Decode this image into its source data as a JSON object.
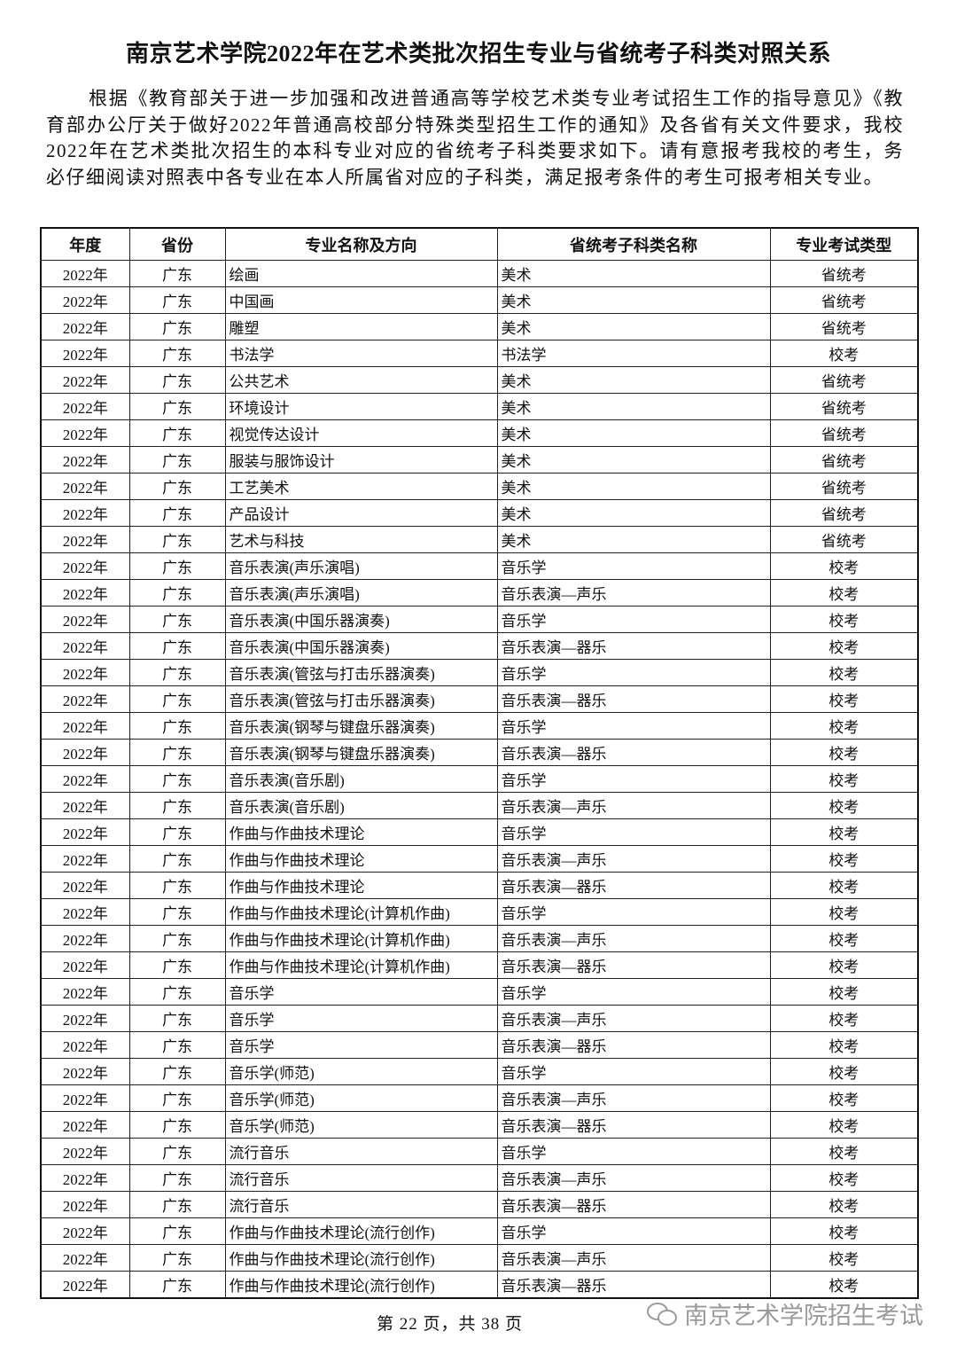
{
  "title": "南京艺术学院2022年在艺术类批次招生专业与省统考子科类对照关系",
  "intro": "根据《教育部关于进一步加强和改进普通高等学校艺术类专业考试招生工作的指导意见》《教育部办公厅关于做好2022年普通高校部分特殊类型招生工作的通知》及各省有关文件要求，我校2022年在艺术类批次招生的本科专业对应的省统考子科类要求如下。请有意报考我校的考生，务必仔细阅读对照表中各专业在本人所属省对应的子科类，满足报考条件的考生可报考相关专业。",
  "table": {
    "headers": [
      "年度",
      "省份",
      "专业名称及方向",
      "省统考子科类名称",
      "专业考试类型"
    ],
    "rows": [
      [
        "2022年",
        "广东",
        "绘画",
        "美术",
        "省统考"
      ],
      [
        "2022年",
        "广东",
        "中国画",
        "美术",
        "省统考"
      ],
      [
        "2022年",
        "广东",
        "雕塑",
        "美术",
        "省统考"
      ],
      [
        "2022年",
        "广东",
        "书法学",
        "书法学",
        "校考"
      ],
      [
        "2022年",
        "广东",
        "公共艺术",
        "美术",
        "省统考"
      ],
      [
        "2022年",
        "广东",
        "环境设计",
        "美术",
        "省统考"
      ],
      [
        "2022年",
        "广东",
        "视觉传达设计",
        "美术",
        "省统考"
      ],
      [
        "2022年",
        "广东",
        "服装与服饰设计",
        "美术",
        "省统考"
      ],
      [
        "2022年",
        "广东",
        "工艺美术",
        "美术",
        "省统考"
      ],
      [
        "2022年",
        "广东",
        "产品设计",
        "美术",
        "省统考"
      ],
      [
        "2022年",
        "广东",
        "艺术与科技",
        "美术",
        "省统考"
      ],
      [
        "2022年",
        "广东",
        "音乐表演(声乐演唱)",
        "音乐学",
        "校考"
      ],
      [
        "2022年",
        "广东",
        "音乐表演(声乐演唱)",
        "音乐表演—声乐",
        "校考"
      ],
      [
        "2022年",
        "广东",
        "音乐表演(中国乐器演奏)",
        "音乐学",
        "校考"
      ],
      [
        "2022年",
        "广东",
        "音乐表演(中国乐器演奏)",
        "音乐表演—器乐",
        "校考"
      ],
      [
        "2022年",
        "广东",
        "音乐表演(管弦与打击乐器演奏)",
        "音乐学",
        "校考"
      ],
      [
        "2022年",
        "广东",
        "音乐表演(管弦与打击乐器演奏)",
        "音乐表演—器乐",
        "校考"
      ],
      [
        "2022年",
        "广东",
        "音乐表演(钢琴与键盘乐器演奏)",
        "音乐学",
        "校考"
      ],
      [
        "2022年",
        "广东",
        "音乐表演(钢琴与键盘乐器演奏)",
        "音乐表演—器乐",
        "校考"
      ],
      [
        "2022年",
        "广东",
        "音乐表演(音乐剧)",
        "音乐学",
        "校考"
      ],
      [
        "2022年",
        "广东",
        "音乐表演(音乐剧)",
        "音乐表演—声乐",
        "校考"
      ],
      [
        "2022年",
        "广东",
        "作曲与作曲技术理论",
        "音乐学",
        "校考"
      ],
      [
        "2022年",
        "广东",
        "作曲与作曲技术理论",
        "音乐表演—声乐",
        "校考"
      ],
      [
        "2022年",
        "广东",
        "作曲与作曲技术理论",
        "音乐表演—器乐",
        "校考"
      ],
      [
        "2022年",
        "广东",
        "作曲与作曲技术理论(计算机作曲)",
        "音乐学",
        "校考"
      ],
      [
        "2022年",
        "广东",
        "作曲与作曲技术理论(计算机作曲)",
        "音乐表演—声乐",
        "校考"
      ],
      [
        "2022年",
        "广东",
        "作曲与作曲技术理论(计算机作曲)",
        "音乐表演—器乐",
        "校考"
      ],
      [
        "2022年",
        "广东",
        "音乐学",
        "音乐学",
        "校考"
      ],
      [
        "2022年",
        "广东",
        "音乐学",
        "音乐表演—声乐",
        "校考"
      ],
      [
        "2022年",
        "广东",
        "音乐学",
        "音乐表演—器乐",
        "校考"
      ],
      [
        "2022年",
        "广东",
        "音乐学(师范)",
        "音乐学",
        "校考"
      ],
      [
        "2022年",
        "广东",
        "音乐学(师范)",
        "音乐表演—声乐",
        "校考"
      ],
      [
        "2022年",
        "广东",
        "音乐学(师范)",
        "音乐表演—器乐",
        "校考"
      ],
      [
        "2022年",
        "广东",
        "流行音乐",
        "音乐学",
        "校考"
      ],
      [
        "2022年",
        "广东",
        "流行音乐",
        "音乐表演—声乐",
        "校考"
      ],
      [
        "2022年",
        "广东",
        "流行音乐",
        "音乐表演—器乐",
        "校考"
      ],
      [
        "2022年",
        "广东",
        "作曲与作曲技术理论(流行创作)",
        "音乐学",
        "校考"
      ],
      [
        "2022年",
        "广东",
        "作曲与作曲技术理论(流行创作)",
        "音乐表演—声乐",
        "校考"
      ],
      [
        "2022年",
        "广东",
        "作曲与作曲技术理论(流行创作)",
        "音乐表演—器乐",
        "校考"
      ]
    ]
  },
  "footer": {
    "page_info": "第 22 页，共 38 页"
  },
  "watermark": {
    "text": "南京艺术学院招生考试",
    "icon": "wechat-icon"
  }
}
